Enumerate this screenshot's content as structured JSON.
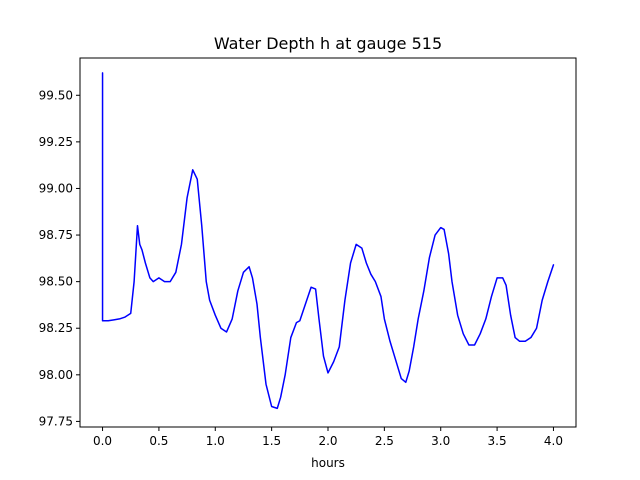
{
  "chart_data": {
    "type": "line",
    "title": "Water Depth h at gauge 515",
    "xlabel": "hours",
    "ylabel": "",
    "xlim": [
      -0.2,
      4.2
    ],
    "ylim": [
      97.72,
      99.7
    ],
    "xticks": [
      0.0,
      0.5,
      1.0,
      1.5,
      2.0,
      2.5,
      3.0,
      3.5,
      4.0
    ],
    "xtick_labels": [
      "0.0",
      "0.5",
      "1.0",
      "1.5",
      "2.0",
      "2.5",
      "3.0",
      "3.5",
      "4.0"
    ],
    "yticks": [
      97.75,
      98.0,
      98.25,
      98.5,
      98.75,
      99.0,
      99.25,
      99.5
    ],
    "ytick_labels": [
      "97.75",
      "98.00",
      "98.25",
      "98.50",
      "98.75",
      "99.00",
      "99.25",
      "99.50"
    ],
    "grid": false,
    "series": [
      {
        "color": "#0000ff",
        "x": [
          0.0,
          0.0,
          0.05,
          0.1,
          0.15,
          0.2,
          0.25,
          0.28,
          0.31,
          0.33,
          0.35,
          0.38,
          0.42,
          0.45,
          0.5,
          0.55,
          0.6,
          0.65,
          0.7,
          0.75,
          0.8,
          0.84,
          0.88,
          0.92,
          0.95,
          1.0,
          1.05,
          1.1,
          1.15,
          1.2,
          1.25,
          1.3,
          1.33,
          1.37,
          1.4,
          1.45,
          1.5,
          1.55,
          1.58,
          1.62,
          1.67,
          1.72,
          1.75,
          1.8,
          1.85,
          1.89,
          1.92,
          1.96,
          2.0,
          2.05,
          2.1,
          2.15,
          2.2,
          2.25,
          2.3,
          2.34,
          2.38,
          2.42,
          2.47,
          2.5,
          2.55,
          2.6,
          2.65,
          2.69,
          2.72,
          2.76,
          2.8,
          2.85,
          2.9,
          2.95,
          3.0,
          3.03,
          3.07,
          3.1,
          3.15,
          3.2,
          3.25,
          3.3,
          3.35,
          3.4,
          3.45,
          3.5,
          3.55,
          3.58,
          3.62,
          3.66,
          3.7,
          3.75,
          3.8,
          3.85,
          3.9,
          3.95,
          4.0
        ],
        "y": [
          99.62,
          98.29,
          98.29,
          98.295,
          98.3,
          98.31,
          98.33,
          98.5,
          98.8,
          98.7,
          98.67,
          98.6,
          98.52,
          98.5,
          98.52,
          98.5,
          98.5,
          98.55,
          98.7,
          98.95,
          99.1,
          99.05,
          98.8,
          98.5,
          98.4,
          98.32,
          98.25,
          98.23,
          98.3,
          98.45,
          98.55,
          98.58,
          98.52,
          98.38,
          98.2,
          97.95,
          97.83,
          97.82,
          97.88,
          98.0,
          98.2,
          98.28,
          98.29,
          98.38,
          98.47,
          98.46,
          98.3,
          98.1,
          98.01,
          98.07,
          98.15,
          98.4,
          98.6,
          98.7,
          98.68,
          98.6,
          98.54,
          98.5,
          98.42,
          98.3,
          98.18,
          98.08,
          97.98,
          97.96,
          98.02,
          98.15,
          98.3,
          98.45,
          98.63,
          98.75,
          98.79,
          98.78,
          98.65,
          98.5,
          98.32,
          98.22,
          98.16,
          98.16,
          98.22,
          98.3,
          98.42,
          98.52,
          98.52,
          98.48,
          98.32,
          98.2,
          98.18,
          98.18,
          98.2,
          98.25,
          98.4,
          98.5,
          98.59
        ]
      }
    ]
  }
}
